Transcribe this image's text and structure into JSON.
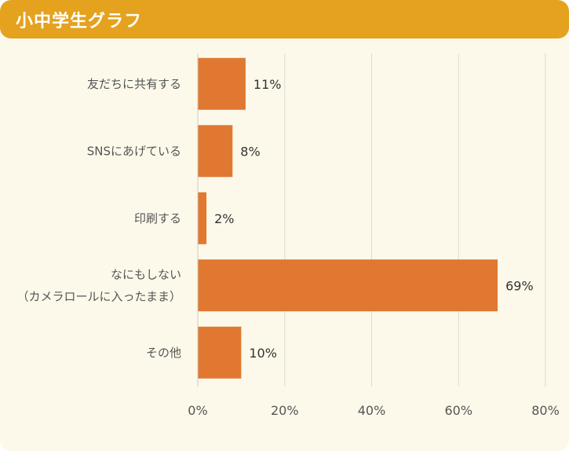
{
  "header": {
    "title": "小中学生グラフ"
  },
  "colors": {
    "bar": "#e07832",
    "grid": "#dedbd2",
    "header": "#e4a21e",
    "panel": "#fcf9ea"
  },
  "chart_data": {
    "type": "bar",
    "orientation": "horizontal",
    "title": "小中学生グラフ",
    "categories": [
      [
        "友だちに共有する"
      ],
      [
        "SNSにあげている"
      ],
      [
        "印刷する"
      ],
      [
        "なにもしない",
        "（カメラロールに入ったまま）"
      ],
      [
        "その他"
      ]
    ],
    "values": [
      11,
      8,
      2,
      69,
      10
    ],
    "value_labels": [
      "11%",
      "8%",
      "2%",
      "69%",
      "10%"
    ],
    "xlim": [
      0,
      80
    ],
    "xticks": [
      0,
      20,
      40,
      60,
      80
    ],
    "xtick_labels": [
      "0%",
      "20%",
      "40%",
      "60%",
      "80%"
    ],
    "grid": true,
    "legend": "none"
  }
}
